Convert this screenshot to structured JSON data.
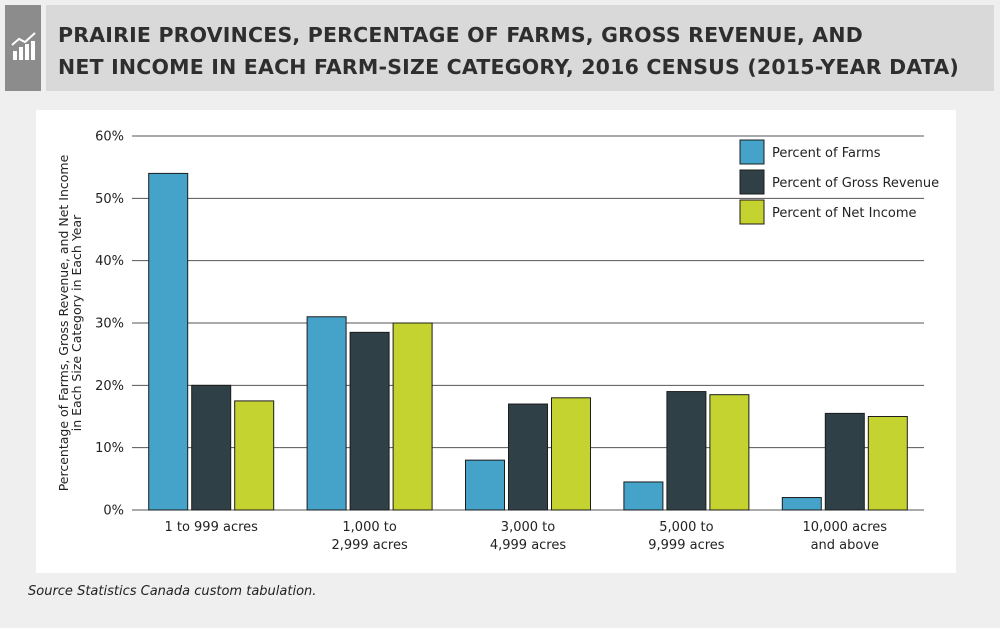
{
  "header": {
    "icon": "rising-chart-icon",
    "title_line_1": "PRAIRIE PROVINCES, PERCENTAGE OF FARMS, GROSS REVENUE, AND",
    "title_line_2": "NET INCOME IN EACH FARM-SIZE CATEGORY, 2016 CENSUS (2015-YEAR DATA)"
  },
  "source": "Source Statistics Canada custom tabulation.",
  "colors": {
    "page_background": "#efefef",
    "header_background": "#d9d9d9",
    "icon_box": "#8c8c8c"
  },
  "chart_data": {
    "type": "bar",
    "title": "",
    "xlabel": "",
    "ylabel": "Percentage of Farms, Gross Revenue, and Net Income\nin Each Size Category in Each Year",
    "ylim": [
      0,
      60
    ],
    "yticks": [
      0,
      10,
      20,
      30,
      40,
      50,
      60
    ],
    "ytick_labels": [
      "0%",
      "10%",
      "20%",
      "30%",
      "40%",
      "50%",
      "60%"
    ],
    "grid": true,
    "legend_position": "top-right",
    "categories": [
      [
        "1 to 999 acres"
      ],
      [
        "1,000 to",
        "2,999 acres"
      ],
      [
        "3,000 to",
        "4,999 acres"
      ],
      [
        "5,000 to",
        "9,999 acres"
      ],
      [
        "10,000 acres",
        "and above"
      ]
    ],
    "series": [
      {
        "name": "Percent of Farms",
        "color": "#45a2c9",
        "values": [
          54,
          31,
          8,
          4.5,
          2
        ]
      },
      {
        "name": "Percent of Gross Revenue",
        "color": "#2f4147",
        "values": [
          20,
          28.5,
          17,
          19,
          15.5
        ]
      },
      {
        "name": "Percent of Net Income",
        "color": "#c4d330",
        "values": [
          17.5,
          30,
          18,
          18.5,
          15
        ]
      }
    ]
  }
}
